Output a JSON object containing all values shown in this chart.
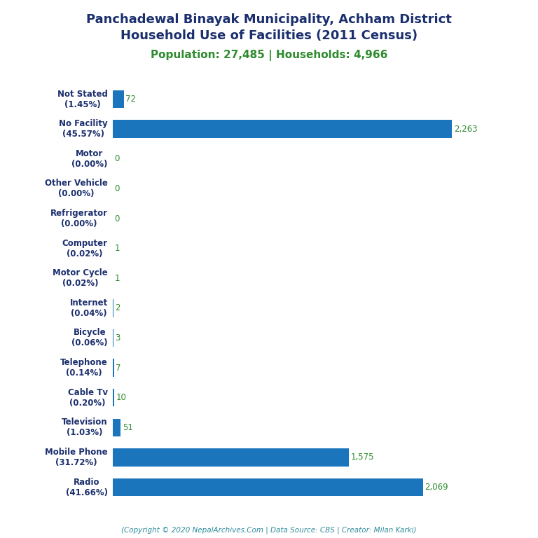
{
  "title_line1": "Panchadewal Binayak Municipality, Achham District",
  "title_line2": "Household Use of Facilities (2011 Census)",
  "subtitle": "Population: 27,485 | Households: 4,966",
  "footer": "(Copyright © 2020 NepalArchives.Com | Data Source: CBS | Creator: Milan Karki)",
  "categories": [
    "Radio\n(41.66%)",
    "Mobile Phone\n(31.72%)",
    "Television\n(1.03%)",
    "Cable Tv\n(0.20%)",
    "Telephone\n(0.14%)",
    "Bicycle\n(0.06%)",
    "Internet\n(0.04%)",
    "Motor Cycle\n(0.02%)",
    "Computer\n(0.02%)",
    "Refrigerator\n(0.00%)",
    "Other Vehicle\n(0.00%)",
    "Motor\n(0.00%)",
    "No Facility\n(45.57%)",
    "Not Stated\n(1.45%)"
  ],
  "values": [
    2069,
    1575,
    51,
    10,
    7,
    3,
    2,
    1,
    1,
    0,
    0,
    0,
    2263,
    72
  ],
  "bar_color_main": "#1B75BC",
  "title_color": "#1B2F6E",
  "subtitle_color": "#2E8B2E",
  "footer_color": "#2E8B9A",
  "label_color_green": "#2E8B2E",
  "background_color": "#FFFFFF",
  "xlim": [
    0,
    2550
  ]
}
